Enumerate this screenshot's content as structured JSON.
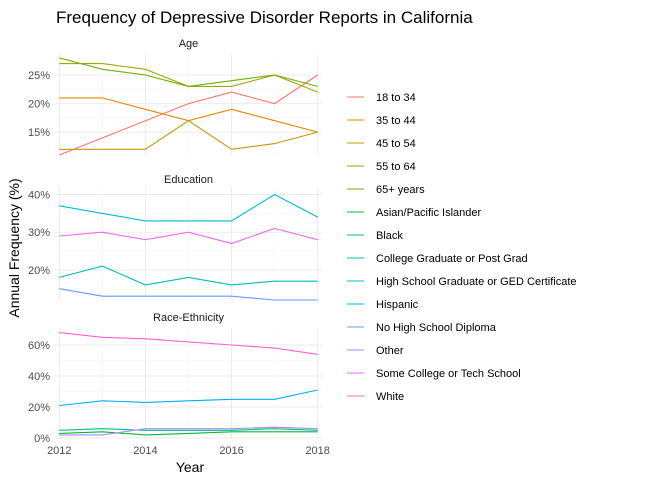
{
  "chart_data": {
    "type": "line",
    "title": "Frequency of Depressive Disorder Reports in California",
    "xlabel": "Year",
    "ylabel": "Annual Frequency (%)",
    "x": [
      2012,
      2013,
      2014,
      2015,
      2016,
      2017,
      2018
    ],
    "x_ticks": [
      2012,
      2014,
      2016,
      2018
    ],
    "x_tick_labels": [
      "2012",
      "2014",
      "2016",
      "2018"
    ],
    "xlim": [
      2011.9,
      2018.1
    ],
    "grid": true,
    "legend_position": "right",
    "legend": [
      {
        "name": "18 to 34",
        "color": "#F8766D"
      },
      {
        "name": "35 to 44",
        "color": "#E58700"
      },
      {
        "name": "45 to 54",
        "color": "#C99800"
      },
      {
        "name": "55 to 64",
        "color": "#A3A500"
      },
      {
        "name": "65+ years",
        "color": "#6BB100"
      },
      {
        "name": "Asian/Pacific Islander",
        "color": "#00BA38"
      },
      {
        "name": "Black",
        "color": "#00BF7D"
      },
      {
        "name": "College Graduate or Post Grad",
        "color": "#00C0AF"
      },
      {
        "name": "High School Graduate or GED Certificate",
        "color": "#00BCD8"
      },
      {
        "name": "Hispanic",
        "color": "#00B0F6"
      },
      {
        "name": "No High School Diploma",
        "color": "#619CFF"
      },
      {
        "name": "Other",
        "color": "#B983FF"
      },
      {
        "name": "Some College or Tech School",
        "color": "#E76BF3"
      },
      {
        "name": "White",
        "color": "#FD61D1"
      }
    ],
    "panels": [
      {
        "title": "Age",
        "ylim": [
          11,
          28.5
        ],
        "y_ticks": [
          15,
          20,
          25
        ],
        "y_tick_labels": [
          "15%",
          "20%",
          "25%"
        ],
        "series": [
          {
            "name": "18 to 34",
            "color": "#F8766D",
            "values": [
              11,
              14,
              17,
              20,
              22,
              20,
              25
            ]
          },
          {
            "name": "35 to 44",
            "color": "#E58700",
            "values": [
              21,
              21,
              19,
              17,
              19,
              17,
              15
            ]
          },
          {
            "name": "45 to 54",
            "color": "#C99800",
            "values": [
              12,
              12,
              12,
              17,
              12,
              13,
              15
            ]
          },
          {
            "name": "55 to 64",
            "color": "#A3A500",
            "values": [
              27,
              27,
              26,
              23,
              23,
              25,
              22
            ]
          },
          {
            "name": "65+ years",
            "color": "#6BB100",
            "values": [
              28,
              26,
              25,
              23,
              24,
              25,
              23
            ]
          }
        ]
      },
      {
        "title": "Education",
        "ylim": [
          12,
          42
        ],
        "y_ticks": [
          20,
          30,
          40
        ],
        "y_tick_labels": [
          "20%",
          "30%",
          "40%"
        ],
        "series": [
          {
            "name": "College Graduate or Post Grad",
            "color": "#00C0AF",
            "values": [
              18,
              21,
              16,
              18,
              16,
              17,
              17
            ]
          },
          {
            "name": "High School Graduate or GED Certificate",
            "color": "#00BCD8",
            "values": [
              37,
              35,
              33,
              33,
              33,
              40,
              34
            ]
          },
          {
            "name": "No High School Diploma",
            "color": "#619CFF",
            "values": [
              15,
              13,
              13,
              13,
              13,
              12,
              12
            ]
          },
          {
            "name": "Some College or Tech School",
            "color": "#E76BF3",
            "values": [
              29,
              30,
              28,
              30,
              27,
              31,
              28
            ]
          }
        ]
      },
      {
        "title": "Race-Ethnicity",
        "ylim": [
          0,
          71
        ],
        "y_ticks": [
          0,
          20,
          40,
          60
        ],
        "y_tick_labels": [
          "0%",
          "20%",
          "40%",
          "60%"
        ],
        "series": [
          {
            "name": "Asian/Pacific Islander",
            "color": "#00BA38",
            "values": [
              3,
              4,
              2,
              3,
              4,
              4,
              4
            ]
          },
          {
            "name": "Black",
            "color": "#00BF7D",
            "values": [
              5,
              6,
              5,
              5,
              5,
              6,
              5
            ]
          },
          {
            "name": "Hispanic",
            "color": "#00B0F6",
            "values": [
              21,
              24,
              23,
              24,
              25,
              25,
              31
            ]
          },
          {
            "name": "Other",
            "color": "#B983FF",
            "values": [
              2,
              2,
              6,
              6,
              6,
              7,
              6
            ]
          },
          {
            "name": "White",
            "color": "#FD61D1",
            "values": [
              68,
              65,
              64,
              62,
              60,
              58,
              54
            ]
          }
        ]
      }
    ]
  }
}
